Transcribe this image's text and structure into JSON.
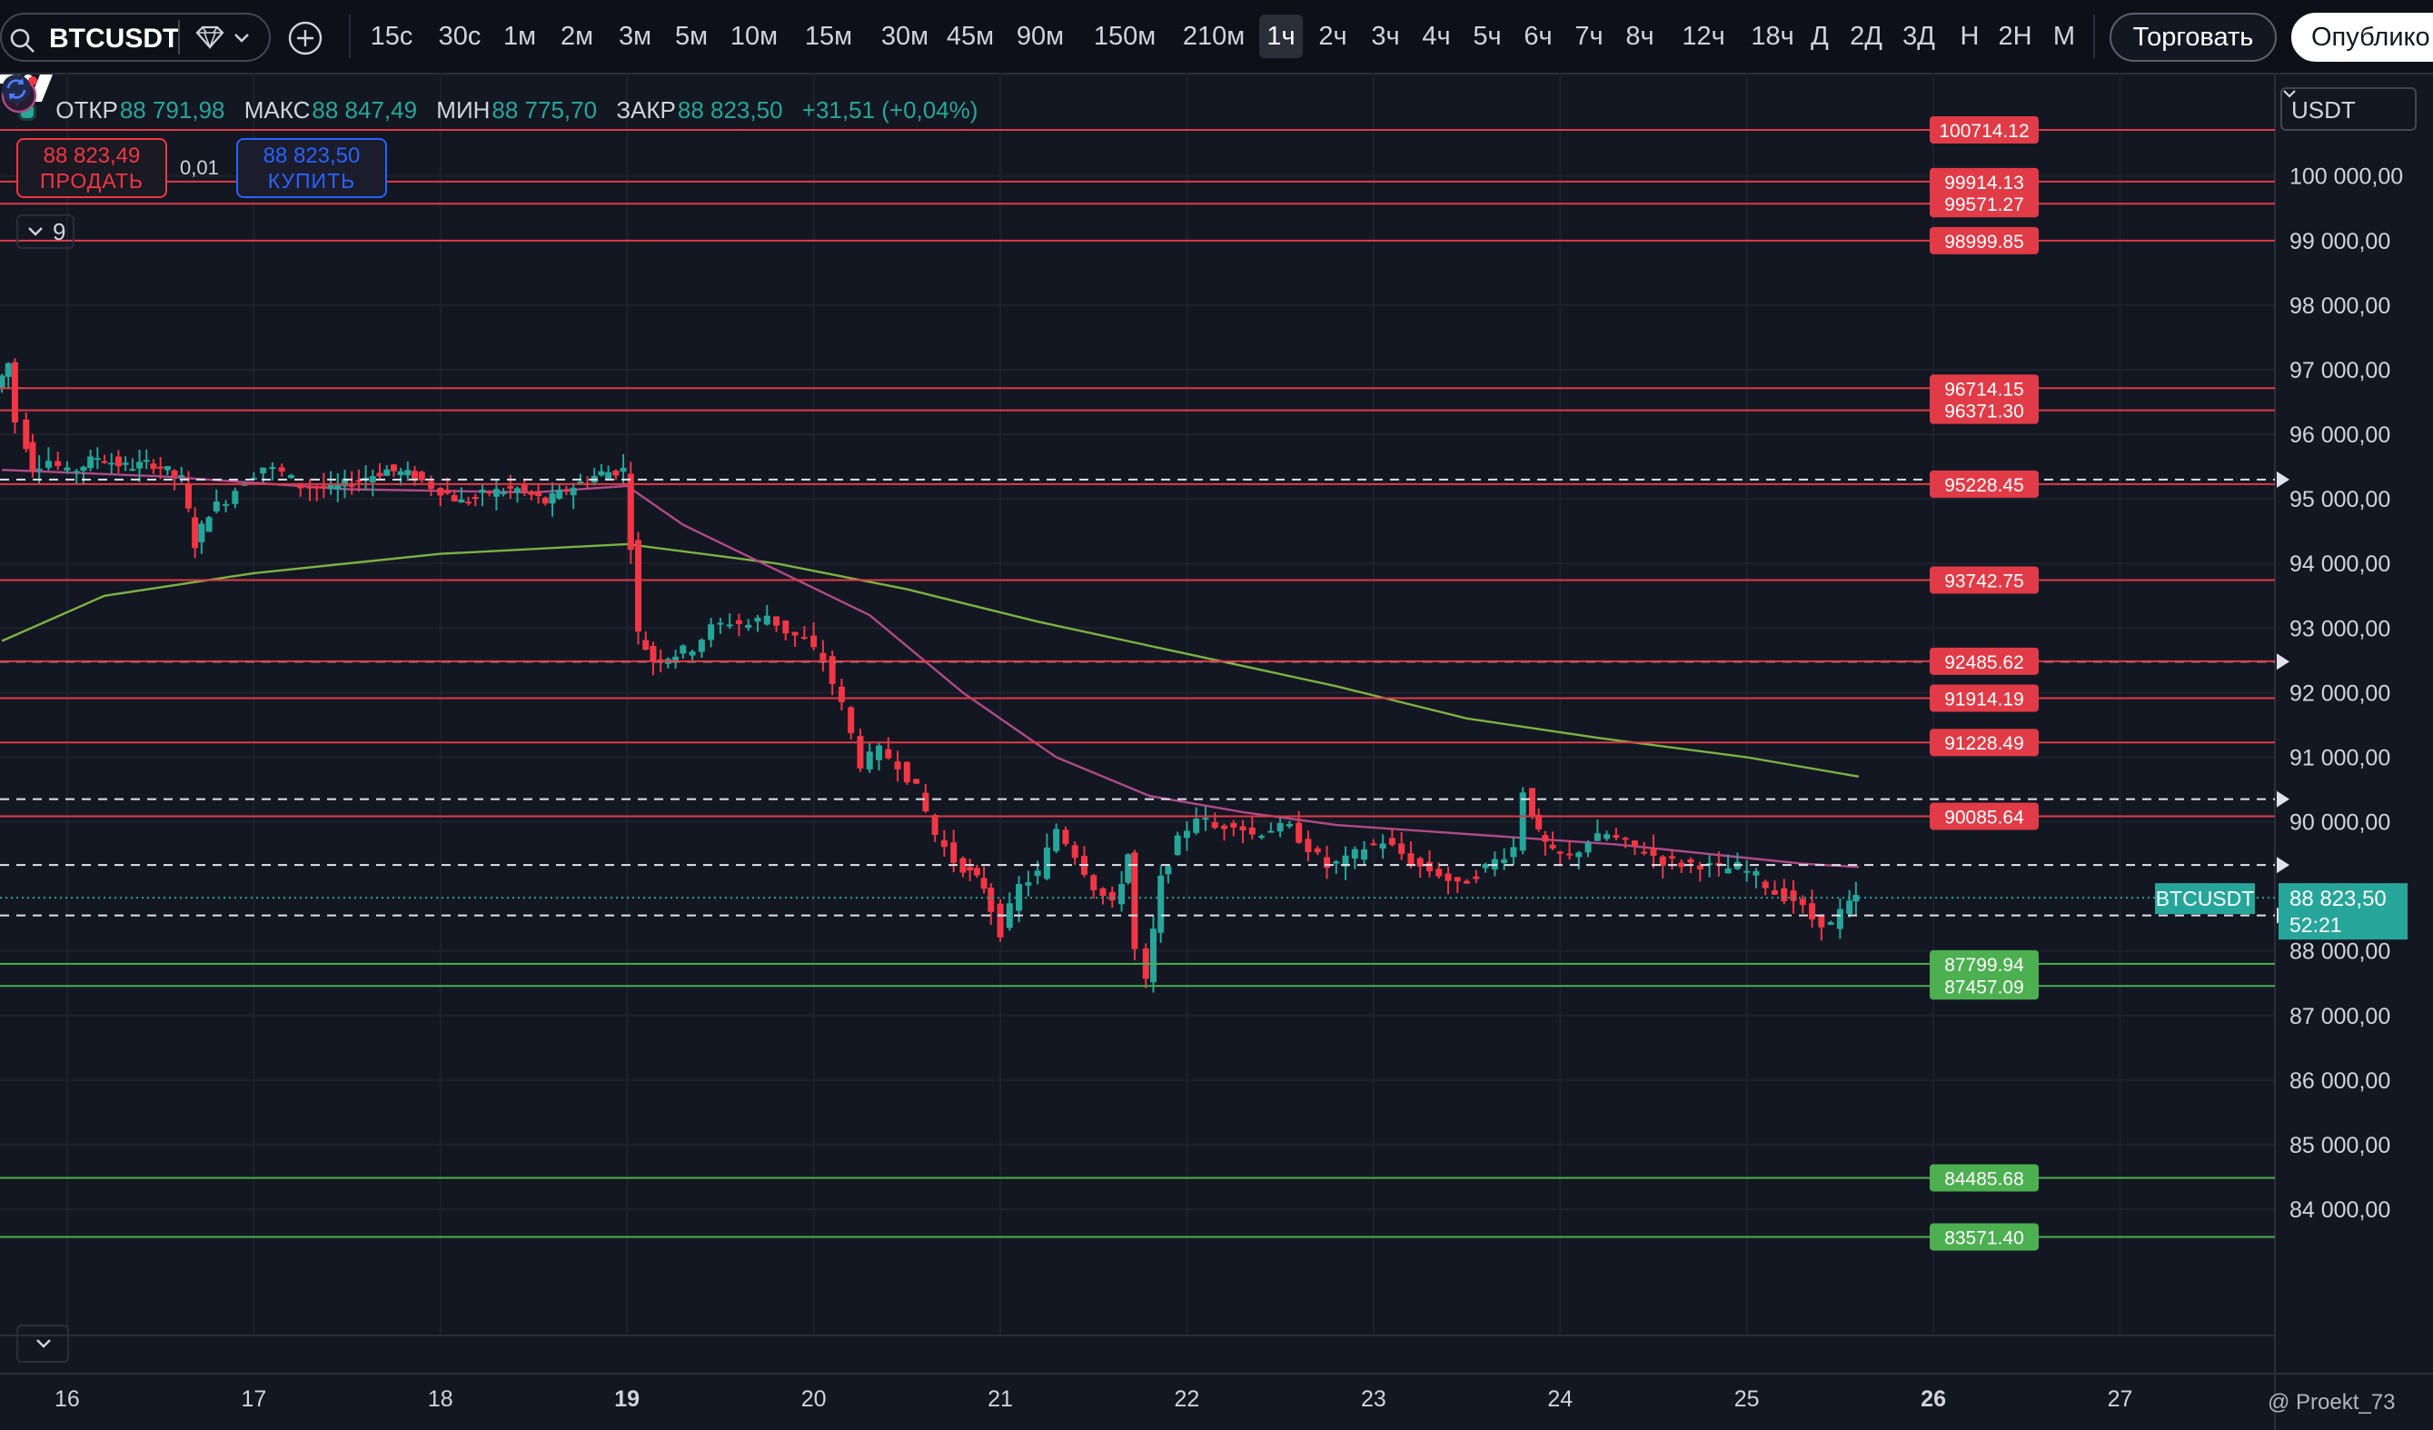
{
  "toolbar": {
    "symbol": "BTCUSDT",
    "intervals": [
      "15с",
      "30с",
      "1м",
      "2м",
      "3м",
      "5м",
      "10м",
      "15м",
      "30м",
      "45м",
      "90м",
      "150м",
      "210м",
      "1ч",
      "2ч",
      "3ч",
      "4ч",
      "5ч",
      "6ч",
      "7ч",
      "8ч",
      "12ч",
      "18ч",
      "Д",
      "2Д",
      "3Д",
      "Н",
      "2Н",
      "М"
    ],
    "active_interval": "1ч",
    "trade_label": "Торговать",
    "publish_label": "Опублико"
  },
  "legend": {
    "open_label": "ОТКР",
    "open": "88 791,98",
    "high_label": "МАКС",
    "high": "88 847,49",
    "low_label": "МИН",
    "low": "88 775,70",
    "close_label": "ЗАКР",
    "close": "88 823,50",
    "change": "+31,51 (+0,04%)"
  },
  "trading": {
    "sell_price": "88 823,49",
    "sell_label": "ПРОДАТЬ",
    "spread": "0,01",
    "buy_price": "88 823,50",
    "buy_label": "КУПИТЬ"
  },
  "indicators_count": "9",
  "currency": "USDT",
  "watermark": "@ Proekt_73",
  "chart_data": {
    "type": "candlestick",
    "interval": "1h",
    "price_axis": [
      "100 000,00",
      "99 000,00",
      "98 000,00",
      "97 000,00",
      "96 000,00",
      "95 000,00",
      "94 000,00",
      "93 000,00",
      "92 000,00",
      "91 000,00",
      "90 000,00",
      "88 000,00",
      "87 000,00",
      "86 000,00",
      "85 000,00",
      "84 000,00"
    ],
    "ylim": [
      83400,
      100800
    ],
    "x_ticks": [
      {
        "label": "16",
        "day": 16
      },
      {
        "label": "17",
        "day": 17
      },
      {
        "label": "18",
        "day": 18
      },
      {
        "label": "19",
        "day": 19,
        "bold": true
      },
      {
        "label": "20",
        "day": 20
      },
      {
        "label": "21",
        "day": 21
      },
      {
        "label": "22",
        "day": 22
      },
      {
        "label": "23",
        "day": 23
      },
      {
        "label": "24",
        "day": 24
      },
      {
        "label": "25",
        "day": 25
      },
      {
        "label": "26",
        "day": 26,
        "bold": true
      },
      {
        "label": "27",
        "day": 27
      }
    ],
    "xlim_days": [
      15.64,
      27.83
    ],
    "last_price": {
      "symbol": "BTCUSDT",
      "price": "88 823,50",
      "countdown": "52:21",
      "value": 88823.5
    },
    "levels_red": [
      {
        "label": "100714.12",
        "value": 100714.12
      },
      {
        "label": "99914.13",
        "value": 99914.13
      },
      {
        "label": "99571.27",
        "value": 99571.27
      },
      {
        "label": "98999.85",
        "value": 98999.85
      },
      {
        "label": "96714.15",
        "value": 96714.15
      },
      {
        "label": "96371.30",
        "value": 96371.3
      },
      {
        "label": "95228.45",
        "value": 95228.45
      },
      {
        "label": "93742.75",
        "value": 93742.75
      },
      {
        "label": "92485.62",
        "value": 92485.62
      },
      {
        "label": "91914.19",
        "value": 91914.19
      },
      {
        "label": "91228.49",
        "value": 91228.49
      },
      {
        "label": "90085.64",
        "value": 90085.64
      }
    ],
    "levels_green": [
      {
        "label": "87799.94",
        "value": 87799.94
      },
      {
        "label": "87457.09",
        "value": 87457.09
      },
      {
        "label": "84485.68",
        "value": 84485.68
      },
      {
        "label": "83571.40",
        "value": 83571.4
      }
    ],
    "dashed_levels": [
      95300,
      92480,
      90350,
      89330,
      88550
    ],
    "price_path": [
      [
        15.65,
        96700
      ],
      [
        15.72,
        97100
      ],
      [
        15.78,
        96200
      ],
      [
        15.85,
        95500
      ],
      [
        15.95,
        95600
      ],
      [
        16.05,
        95400
      ],
      [
        16.2,
        95650
      ],
      [
        16.35,
        95500
      ],
      [
        16.5,
        95550
      ],
      [
        16.65,
        95300
      ],
      [
        16.72,
        94300
      ],
      [
        16.8,
        94800
      ],
      [
        16.9,
        95000
      ],
      [
        17.0,
        95300
      ],
      [
        17.1,
        95500
      ],
      [
        17.2,
        95400
      ],
      [
        17.3,
        95200
      ],
      [
        17.45,
        95150
      ],
      [
        17.6,
        95300
      ],
      [
        17.75,
        95450
      ],
      [
        17.9,
        95350
      ],
      [
        18.0,
        95200
      ],
      [
        18.15,
        94950
      ],
      [
        18.3,
        95100
      ],
      [
        18.45,
        95150
      ],
      [
        18.6,
        94950
      ],
      [
        18.75,
        95200
      ],
      [
        18.9,
        95400
      ],
      [
        19.02,
        95450
      ],
      [
        19.06,
        94300
      ],
      [
        19.1,
        92900
      ],
      [
        19.18,
        92500
      ],
      [
        19.3,
        92600
      ],
      [
        19.4,
        92700
      ],
      [
        19.5,
        93000
      ],
      [
        19.6,
        93100
      ],
      [
        19.7,
        93050
      ],
      [
        19.8,
        93200
      ],
      [
        19.9,
        92950
      ],
      [
        20.0,
        92800
      ],
      [
        20.1,
        92500
      ],
      [
        20.2,
        91800
      ],
      [
        20.3,
        90900
      ],
      [
        20.4,
        91100
      ],
      [
        20.5,
        90900
      ],
      [
        20.6,
        90500
      ],
      [
        20.7,
        89800
      ],
      [
        20.8,
        89400
      ],
      [
        20.95,
        89000
      ],
      [
        21.05,
        88300
      ],
      [
        21.15,
        89000
      ],
      [
        21.25,
        89200
      ],
      [
        21.35,
        89900
      ],
      [
        21.45,
        89500
      ],
      [
        21.55,
        89000
      ],
      [
        21.65,
        88700
      ],
      [
        21.72,
        89500
      ],
      [
        21.78,
        88000
      ],
      [
        21.82,
        87500
      ],
      [
        21.9,
        89100
      ],
      [
        22.0,
        89700
      ],
      [
        22.1,
        90100
      ],
      [
        22.2,
        89900
      ],
      [
        22.3,
        90000
      ],
      [
        22.4,
        89800
      ],
      [
        22.5,
        89900
      ],
      [
        22.6,
        89900
      ],
      [
        22.7,
        89600
      ],
      [
        22.8,
        89300
      ],
      [
        22.9,
        89400
      ],
      [
        23.0,
        89600
      ],
      [
        23.1,
        89700
      ],
      [
        23.2,
        89500
      ],
      [
        23.3,
        89300
      ],
      [
        23.4,
        89200
      ],
      [
        23.5,
        89000
      ],
      [
        23.6,
        89200
      ],
      [
        23.7,
        89400
      ],
      [
        23.8,
        89600
      ],
      [
        23.85,
        90500
      ],
      [
        23.92,
        89800
      ],
      [
        24.0,
        89500
      ],
      [
        24.1,
        89450
      ],
      [
        24.2,
        89700
      ],
      [
        24.3,
        89800
      ],
      [
        24.4,
        89650
      ],
      [
        24.5,
        89550
      ],
      [
        24.6,
        89400
      ],
      [
        24.7,
        89350
      ],
      [
        24.8,
        89350
      ],
      [
        24.9,
        89250
      ],
      [
        25.0,
        89300
      ],
      [
        25.1,
        89150
      ],
      [
        25.2,
        88900
      ],
      [
        25.3,
        88800
      ],
      [
        25.4,
        88500
      ],
      [
        25.5,
        88400
      ],
      [
        25.55,
        88600
      ],
      [
        25.62,
        88823.5
      ]
    ],
    "ma_pink": [
      [
        15.65,
        95450
      ],
      [
        16.5,
        95350
      ],
      [
        17.5,
        95150
      ],
      [
        18.5,
        95100
      ],
      [
        19.0,
        95200
      ],
      [
        19.3,
        94600
      ],
      [
        19.8,
        93900
      ],
      [
        20.3,
        93200
      ],
      [
        20.8,
        92000
      ],
      [
        21.3,
        91000
      ],
      [
        21.8,
        90400
      ],
      [
        22.3,
        90150
      ],
      [
        22.8,
        89950
      ],
      [
        23.3,
        89850
      ],
      [
        23.8,
        89750
      ],
      [
        24.3,
        89650
      ],
      [
        24.8,
        89500
      ],
      [
        25.3,
        89350
      ],
      [
        25.6,
        89300
      ]
    ],
    "ma_green": [
      [
        15.65,
        92800
      ],
      [
        16.2,
        93500
      ],
      [
        17.0,
        93850
      ],
      [
        18.0,
        94150
      ],
      [
        19.0,
        94300
      ],
      [
        19.8,
        94000
      ],
      [
        20.5,
        93600
      ],
      [
        21.2,
        93100
      ],
      [
        22.0,
        92600
      ],
      [
        22.8,
        92100
      ],
      [
        23.5,
        91600
      ],
      [
        24.2,
        91300
      ],
      [
        25.0,
        91000
      ],
      [
        25.6,
        90700
      ]
    ]
  }
}
